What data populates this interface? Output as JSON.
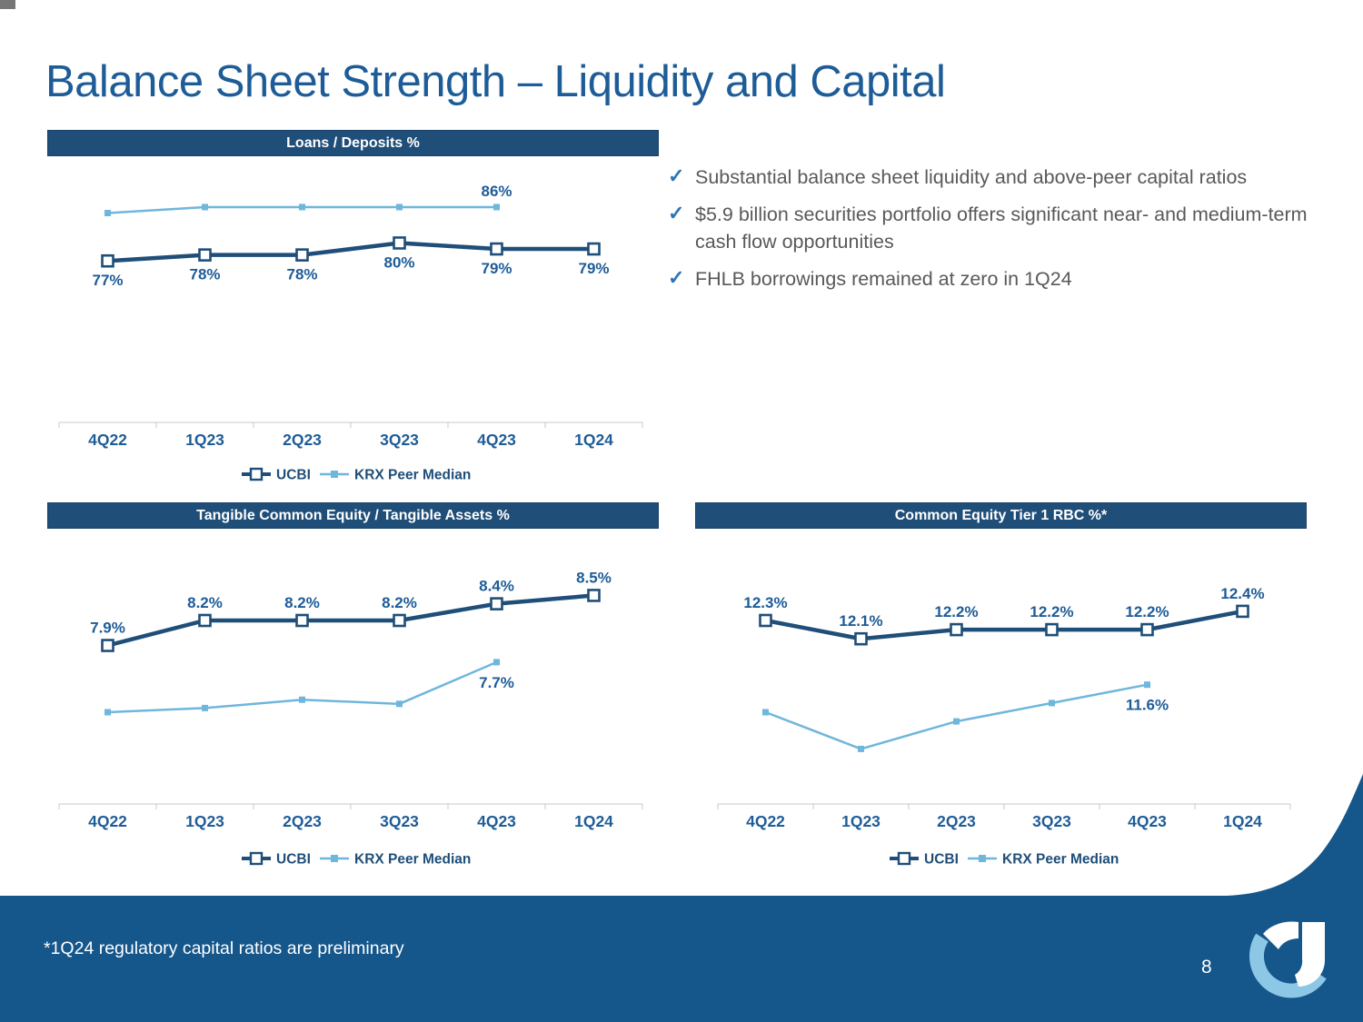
{
  "title": "Balance Sheet Strength – Liquidity and Capital",
  "bullets": [
    "Substantial balance sheet liquidity and above-peer capital ratios",
    "$5.9 billion securities portfolio offers significant near- and medium-term cash flow opportunities",
    "FHLB borrowings remained at zero in 1Q24"
  ],
  "check_icon": "✓",
  "legend": {
    "ucbi": "UCBI",
    "krx": "KRX Peer Median"
  },
  "footer": {
    "footnote": "*1Q24 regulatory capital ratios are preliminary",
    "page_number": "8"
  },
  "colors": {
    "title_blue": "#1E5C97",
    "header_bar": "#1F4E79",
    "ucbi_line": "#1F4E79",
    "krx_line": "#6FB6DC",
    "label_blue": "#1E5C97",
    "axis_gray": "#C9C9C9",
    "text_gray": "#595959",
    "check_blue": "#2E75B6",
    "footer_blue": "#15568B",
    "logo_light_blue": "#8CC7E5",
    "white": "#FFFFFF"
  },
  "chart_data": [
    {
      "type": "line",
      "title": "Loans / Deposits %",
      "categories": [
        "4Q22",
        "1Q23",
        "2Q23",
        "3Q23",
        "4Q23",
        "1Q24"
      ],
      "series": [
        {
          "name": "UCBI",
          "values": [
            77,
            78,
            78,
            80,
            79,
            79
          ],
          "labels": [
            "77%",
            "78%",
            "78%",
            "80%",
            "79%",
            "79%"
          ]
        },
        {
          "name": "KRX Peer Median",
          "values": [
            85,
            86,
            86,
            86,
            86,
            null
          ],
          "labels": [
            null,
            null,
            null,
            null,
            "86%",
            null
          ]
        }
      ],
      "ylim": [
        50,
        94.5
      ],
      "grid": false,
      "legend_position": "bottom"
    },
    {
      "type": "line",
      "title": "Tangible Common Equity / Tangible Assets %",
      "categories": [
        "4Q22",
        "1Q23",
        "2Q23",
        "3Q23",
        "4Q23",
        "1Q24"
      ],
      "series": [
        {
          "name": "UCBI",
          "values": [
            7.9,
            8.2,
            8.2,
            8.2,
            8.4,
            8.5
          ],
          "labels": [
            "7.9%",
            "8.2%",
            "8.2%",
            "8.2%",
            "8.4%",
            "8.5%"
          ]
        },
        {
          "name": "KRX Peer Median",
          "values": [
            7.1,
            7.15,
            7.25,
            7.2,
            7.7,
            null
          ],
          "labels": [
            null,
            null,
            null,
            null,
            "7.7%",
            null
          ]
        }
      ],
      "ylim": [
        6.0,
        9.3
      ],
      "grid": false,
      "legend_position": "bottom"
    },
    {
      "type": "line",
      "title": "Common Equity Tier 1 RBC %*",
      "categories": [
        "4Q22",
        "1Q23",
        "2Q23",
        "3Q23",
        "4Q23",
        "1Q24"
      ],
      "series": [
        {
          "name": "UCBI",
          "values": [
            12.3,
            12.1,
            12.2,
            12.2,
            12.2,
            12.4
          ],
          "labels": [
            "12.3%",
            "12.1%",
            "12.2%",
            "12.2%",
            "12.2%",
            "12.4%"
          ]
        },
        {
          "name": "KRX Peer Median",
          "values": [
            11.3,
            10.9,
            11.2,
            11.4,
            11.6,
            null
          ],
          "labels": [
            null,
            null,
            null,
            null,
            "11.6%",
            null
          ]
        }
      ],
      "ylim": [
        10.3,
        13.3
      ],
      "grid": false,
      "legend_position": "bottom"
    }
  ]
}
